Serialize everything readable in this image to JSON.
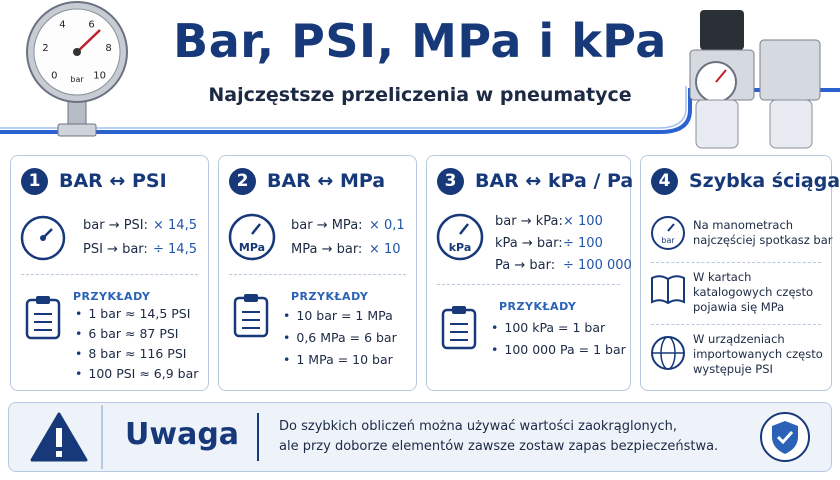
{
  "header": {
    "title": "Bar, PSI, MPa i kPa",
    "subtitle": "Najczęstsze przeliczenia w pneumatyce"
  },
  "gauge": {
    "ticks": [
      0,
      2,
      4,
      6,
      8,
      10
    ],
    "unit": "bar"
  },
  "cards": [
    {
      "number": 1,
      "title": "BAR ↔ PSI",
      "conversions": [
        {
          "from": "bar → PSI:",
          "op": "× 14,5"
        },
        {
          "from": "PSI → bar:",
          "op": "÷ 14,5"
        }
      ],
      "examples_title": "PRZYKŁADY",
      "examples": [
        "1 bar ≈ 14,5 PSI",
        "6 bar ≈ 87 PSI",
        "8 bar ≈ 116 PSI",
        "100 PSI ≈ 6,9 bar"
      ]
    },
    {
      "number": 2,
      "title": "BAR ↔ MPa",
      "icon_label": "MPa",
      "conversions": [
        {
          "from": "bar → MPa:",
          "op": "× 0,1"
        },
        {
          "from": "MPa → bar:",
          "op": "× 10"
        }
      ],
      "examples_title": "PRZYKŁADY",
      "examples": [
        "10 bar = 1 MPa",
        "0,6 MPa = 6 bar",
        "1 MPa = 10 bar"
      ]
    },
    {
      "number": 3,
      "title": "BAR ↔ kPa / Pa",
      "icon_label": "kPa",
      "conversions": [
        {
          "from": "bar → kPa:",
          "op": "× 100"
        },
        {
          "from": "kPa → bar:",
          "op": "÷ 100"
        },
        {
          "from": "Pa → bar:",
          "op": "÷ 100 000"
        }
      ],
      "examples_title": "PRZYKŁADY",
      "examples": [
        "100 kPa = 1 bar",
        "100 000 Pa = 1 bar"
      ]
    },
    {
      "number": 4,
      "title": "Szybka ściąga",
      "icon_label": "bar",
      "tips": [
        [
          "Na manometrach",
          "najczęściej spotkasz bar"
        ],
        [
          "W kartach",
          "katalogowych często",
          "pojawia się MPa"
        ],
        [
          "W urządzeniach",
          "importowanych często",
          "występuje PSI"
        ]
      ]
    }
  ],
  "warning": {
    "title": "Uwaga",
    "lines": [
      "Do szybkich obliczeń można używać wartości zaokrąglonych,",
      "ale przy doborze elementów zawsze zostaw zapas bezpieczeństwa."
    ]
  }
}
